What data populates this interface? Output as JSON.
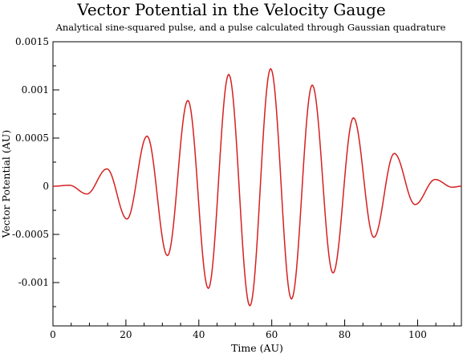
{
  "chart_data": {
    "type": "line",
    "title": "Vector Potential in the Velocity Gauge",
    "subtitle": "Analytical sine-squared pulse, and a pulse calculated through Gaussian quadrature",
    "xlabel": "Time (AU)",
    "ylabel": "Vector Potential (AU)",
    "xlim": [
      0,
      112
    ],
    "ylim": [
      -0.00145,
      0.0015
    ],
    "xticks": [
      0,
      20,
      40,
      60,
      80,
      100
    ],
    "xtick_labels": [
      "0",
      "20",
      "40",
      "60",
      "80",
      "100"
    ],
    "yticks": [
      -0.001,
      -0.0005,
      0,
      0.0005,
      0.001,
      0.0015
    ],
    "ytick_labels": [
      "-0.001",
      "-0.0005",
      "0",
      "0.0005",
      "0.001",
      "0.0015"
    ],
    "grid": false,
    "legend": "none",
    "series": [
      {
        "color": "#d62020",
        "x": [
          0,
          4.5,
          9.3,
          14.8,
          20.3,
          25.8,
          31.4,
          37.0,
          42.6,
          48.2,
          54.0,
          59.7,
          65.4,
          71.1,
          76.8,
          82.4,
          88.0,
          93.6,
          99.3,
          104.8,
          109.5,
          112
        ],
        "y": [
          0,
          1e-05,
          -8e-05,
          0.00018,
          -0.00034,
          0.00052,
          -0.00072,
          0.00089,
          -0.00106,
          0.00116,
          -0.00124,
          0.00122,
          -0.00117,
          0.00105,
          -0.0009,
          0.00071,
          -0.00053,
          0.00034,
          -0.00019,
          7e-05,
          -1e-05,
          0
        ]
      }
    ]
  }
}
